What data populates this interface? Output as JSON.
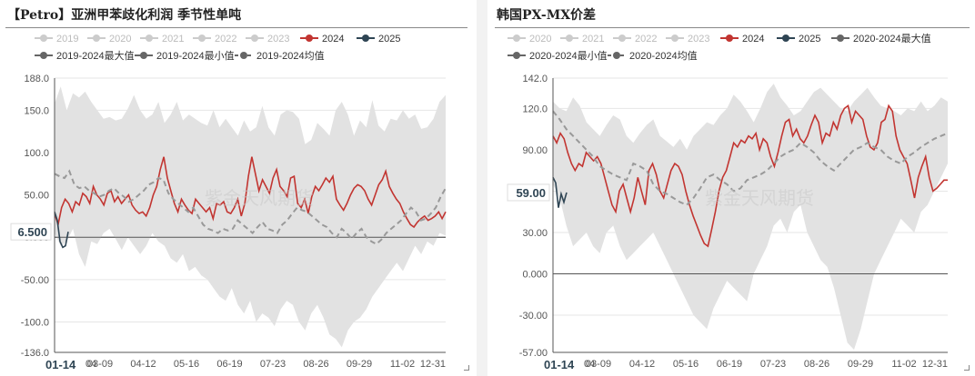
{
  "charts": [
    {
      "id": "left",
      "title": "【Petro】亚洲甲苯歧化利润 季节性单吨",
      "legend_rows": [
        [
          {
            "label": "2019",
            "color": "#cccccc",
            "style": "line"
          },
          {
            "label": "2020",
            "color": "#cccccc",
            "style": "line"
          },
          {
            "label": "2021",
            "color": "#cccccc",
            "style": "line"
          },
          {
            "label": "2022",
            "color": "#cccccc",
            "style": "line"
          },
          {
            "label": "2023",
            "color": "#cccccc",
            "style": "line"
          },
          {
            "label": "2024",
            "color": "#c23531",
            "style": "line"
          },
          {
            "label": "2025",
            "color": "#2f4554",
            "style": "line"
          }
        ],
        [
          {
            "label": "2019-2024最大值",
            "color": "#666666",
            "style": "line"
          },
          {
            "label": "2019-2024最小值",
            "color": "#666666",
            "style": "line"
          },
          {
            "label": "2019-2024均值",
            "color": "#666666",
            "style": "dash"
          }
        ]
      ],
      "yticks": [
        "188.0",
        "150.0",
        "100.0",
        "50.00",
        "0.000",
        "-50.00",
        "-100.0",
        "-136.0"
      ],
      "xticks": [
        "01-14",
        "03-09",
        "04-12",
        "05-16",
        "06-19",
        "07-23",
        "08-26",
        "09-29",
        "11-02",
        "12-31"
      ],
      "x_first_label": "01-14",
      "x_partial_label": "04",
      "current_value_label": "6.500",
      "watermark": "紫金天风期货",
      "chart_data": {
        "type": "line",
        "ylim": [
          -136,
          188
        ],
        "band_upper": [
          158,
          178,
          150,
          170,
          165,
          172,
          160,
          150,
          140,
          142,
          138,
          140,
          152,
          168,
          150,
          140,
          145,
          160,
          135,
          145,
          160,
          138,
          145,
          140,
          135,
          132,
          150,
          130,
          140,
          130,
          120,
          138,
          125,
          130,
          155,
          130,
          120,
          145,
          150,
          148,
          140,
          110,
          115,
          135,
          128,
          120,
          150,
          160,
          145,
          120,
          138,
          130,
          162,
          132,
          125,
          140,
          138,
          150,
          140,
          145,
          128,
          130,
          140,
          160,
          168
        ],
        "band_lower": [
          5,
          -10,
          -5,
          10,
          -20,
          -35,
          -5,
          -8,
          5,
          10,
          -2,
          -15,
          0,
          -10,
          -20,
          -10,
          5,
          -5,
          -10,
          -25,
          -30,
          -20,
          -40,
          -35,
          -45,
          -50,
          -60,
          -70,
          -75,
          -60,
          -80,
          -90,
          -75,
          -100,
          -90,
          -95,
          -105,
          -85,
          -75,
          -80,
          -100,
          -110,
          -90,
          -80,
          -95,
          -115,
          -120,
          -130,
          -110,
          -100,
          -95,
          -85,
          -70,
          -60,
          -50,
          -40,
          -30,
          -40,
          -25,
          -10,
          -20,
          -5,
          -10,
          5,
          2
        ],
        "series": [
          {
            "name": "2024",
            "color": "#c23531",
            "values": [
              28,
              15,
              35,
              45,
              40,
              30,
              42,
              38,
              52,
              48,
              40,
              60,
              50,
              45,
              38,
              52,
              55,
              42,
              48,
              40,
              45,
              50,
              38,
              32,
              28,
              30,
              25,
              35,
              50,
              60,
              80,
              95,
              70,
              55,
              40,
              30,
              45,
              38,
              32,
              28,
              45,
              40,
              35,
              30,
              35,
              22,
              40,
              38,
              42,
              30,
              28,
              35,
              45,
              25,
              40,
              72,
              95,
              75,
              55,
              68,
              60,
              52,
              70,
              80,
              60,
              55,
              48,
              70,
              72,
              40,
              35,
              45,
              28,
              48,
              60,
              55,
              62,
              70,
              65,
              72,
              45,
              38,
              32,
              40,
              50,
              58,
              62,
              60,
              55,
              45,
              38,
              50,
              62,
              68,
              78,
              60,
              52,
              45,
              40,
              30,
              22,
              15,
              12,
              18,
              22,
              25,
              20,
              22,
              25,
              30,
              22,
              30
            ]
          },
          {
            "name": "2025",
            "color": "#2f4554",
            "values": [
              30,
              20,
              -5,
              -12,
              -10,
              6.5
            ]
          },
          {
            "name": "2019-2024均值",
            "color": "#999999",
            "dash": true,
            "values": [
              75,
              72,
              70,
              78,
              62,
              58,
              60,
              55,
              52,
              48,
              50,
              55,
              58,
              52,
              48,
              42,
              45,
              50,
              55,
              62,
              65,
              70,
              68,
              52,
              45,
              40,
              35,
              30,
              35,
              25,
              15,
              10,
              8,
              5,
              10,
              8,
              10,
              20,
              15,
              10,
              5,
              12,
              18,
              10,
              8,
              5,
              15,
              20,
              28,
              35,
              32,
              30,
              25,
              20,
              15,
              12,
              5,
              0,
              10,
              5,
              -2,
              5,
              10,
              0,
              -5,
              -8,
              -3,
              5,
              10,
              15,
              20,
              28,
              35,
              30,
              20,
              22,
              28,
              35,
              48,
              58
            ]
          }
        ]
      }
    },
    {
      "id": "right",
      "title": "韩国PX-MX价差",
      "legend_rows": [
        [
          {
            "label": "2020",
            "color": "#cccccc",
            "style": "line"
          },
          {
            "label": "2021",
            "color": "#cccccc",
            "style": "line"
          },
          {
            "label": "2022",
            "color": "#cccccc",
            "style": "line"
          },
          {
            "label": "2023",
            "color": "#cccccc",
            "style": "line"
          },
          {
            "label": "2024",
            "color": "#c23531",
            "style": "line"
          },
          {
            "label": "2025",
            "color": "#2f4554",
            "style": "line"
          },
          {
            "label": "2020-2024最大值",
            "color": "#666666",
            "style": "line"
          }
        ],
        [
          {
            "label": "2020-2024最小值",
            "color": "#666666",
            "style": "line"
          },
          {
            "label": "2020-2024均值",
            "color": "#666666",
            "style": "dash"
          }
        ]
      ],
      "yticks": [
        "142.0",
        "120.0",
        "90.00",
        "60.00",
        "30.00",
        "0.000",
        "-30.00",
        "-57.00"
      ],
      "xticks": [
        "01-14",
        "03-09",
        "04-12",
        "05-16",
        "06-19",
        "07-23",
        "08-26",
        "09-29",
        "11-02",
        "12-31"
      ],
      "x_first_label": "01-14",
      "x_partial_label": "04",
      "current_value_label": "59.00",
      "watermark": "紫金天风期货",
      "chart_data": {
        "type": "line",
        "ylim": [
          -57,
          142
        ],
        "band_upper": [
          125,
          120,
          118,
          128,
          122,
          110,
          105,
          100,
          108,
          115,
          112,
          100,
          95,
          102,
          108,
          112,
          100,
          96,
          92,
          98,
          90,
          100,
          105,
          110,
          108,
          115,
          120,
          130,
          125,
          118,
          110,
          120,
          132,
          138,
          128,
          122,
          115,
          118,
          125,
          132,
          135,
          130,
          125,
          120,
          118,
          125,
          130,
          135,
          128,
          122,
          120,
          118,
          115,
          120,
          118,
          125,
          118,
          122,
          128,
          125
        ],
        "band_lower": [
          65,
          55,
          35,
          20,
          25,
          30,
          20,
          15,
          30,
          35,
          20,
          10,
          15,
          20,
          25,
          30,
          20,
          10,
          0,
          -10,
          -20,
          -30,
          -35,
          -40,
          -25,
          -15,
          -5,
          -10,
          -15,
          -20,
          0,
          10,
          20,
          35,
          40,
          30,
          45,
          50,
          30,
          20,
          10,
          5,
          -10,
          -30,
          -50,
          -55,
          -40,
          -20,
          0,
          10,
          20,
          30,
          40,
          35,
          30,
          45,
          50,
          60,
          70,
          80
        ],
        "series": [
          {
            "name": "2024",
            "color": "#c23531",
            "values": [
              100,
              95,
              102,
              98,
              88,
              80,
              75,
              80,
              78,
              88,
              85,
              82,
              85,
              80,
              70,
              60,
              50,
              45,
              60,
              65,
              55,
              45,
              55,
              70,
              60,
              50,
              75,
              80,
              72,
              60,
              55,
              65,
              75,
              80,
              78,
              72,
              60,
              50,
              42,
              35,
              28,
              22,
              20,
              32,
              45,
              60,
              70,
              75,
              85,
              95,
              92,
              97,
              95,
              100,
              98,
              102,
              90,
              98,
              95,
              85,
              78,
              88,
              100,
              110,
              112,
              100,
              105,
              98,
              95,
              100,
              108,
              115,
              110,
              95,
              102,
              100,
              110,
              105,
              115,
              120,
              122,
              110,
              118,
              115,
              112,
              100,
              92,
              90,
              95,
              110,
              112,
              122,
              118,
              100,
              90,
              85,
              80,
              68,
              55,
              70,
              78,
              85,
              70,
              60,
              62,
              65,
              68,
              68
            ]
          },
          {
            "name": "2025",
            "color": "#2f4554",
            "values": [
              70,
              66,
              48,
              58,
              52,
              59
            ]
          },
          {
            "name": "2020-2024均值",
            "color": "#999999",
            "dash": true,
            "values": [
              118,
              112,
              105,
              100,
              95,
              90,
              85,
              78,
              75,
              72,
              70,
              68,
              80,
              78,
              75,
              65,
              60,
              58,
              55,
              52,
              50,
              55,
              62,
              70,
              72,
              68,
              65,
              60,
              62,
              68,
              70,
              72,
              75,
              80,
              85,
              88,
              90,
              95,
              92,
              88,
              82,
              78,
              75,
              80,
              85,
              90,
              92,
              95,
              92,
              90,
              85,
              82,
              80,
              85,
              88,
              92,
              95,
              98,
              100,
              102
            ]
          }
        ]
      }
    }
  ]
}
